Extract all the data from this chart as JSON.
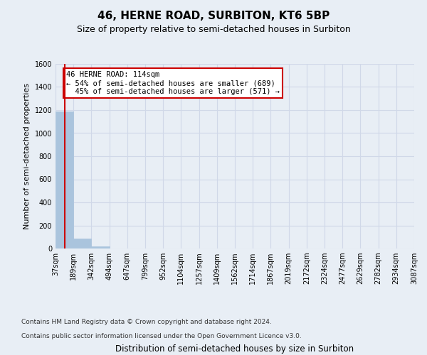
{
  "title": "46, HERNE ROAD, SURBITON, KT6 5BP",
  "subtitle": "Size of property relative to semi-detached houses in Surbiton",
  "xlabel": "Distribution of semi-detached houses by size in Surbiton",
  "ylabel": "Number of semi-detached properties",
  "bin_labels": [
    "37sqm",
    "189sqm",
    "342sqm",
    "494sqm",
    "647sqm",
    "799sqm",
    "952sqm",
    "1104sqm",
    "1257sqm",
    "1409sqm",
    "1562sqm",
    "1714sqm",
    "1867sqm",
    "2019sqm",
    "2172sqm",
    "2324sqm",
    "2477sqm",
    "2629sqm",
    "2782sqm",
    "2934sqm",
    "3087sqm"
  ],
  "bin_edges": [
    37,
    189,
    342,
    494,
    647,
    799,
    952,
    1104,
    1257,
    1409,
    1562,
    1714,
    1867,
    2019,
    2172,
    2324,
    2477,
    2629,
    2782,
    2934,
    3087
  ],
  "bar_heights": [
    1185,
    88,
    20,
    0,
    0,
    0,
    0,
    0,
    0,
    0,
    0,
    0,
    0,
    0,
    0,
    0,
    0,
    0,
    0,
    0
  ],
  "bar_color": "#aac4dd",
  "bar_edgecolor": "#aac4dd",
  "subject_size": 114,
  "subject_label": "46 HERNE ROAD: 114sqm",
  "pct_smaller": 54,
  "n_smaller": 689,
  "pct_larger": 45,
  "n_larger": 571,
  "vline_color": "#cc0000",
  "annotation_box_edgecolor": "#cc0000",
  "annotation_box_facecolor": "#ffffff",
  "grid_color": "#d0d8e8",
  "background_color": "#e8eef5",
  "ylim": [
    0,
    1600
  ],
  "yticks": [
    0,
    200,
    400,
    600,
    800,
    1000,
    1200,
    1400,
    1600
  ],
  "footer_line1": "Contains HM Land Registry data © Crown copyright and database right 2024.",
  "footer_line2": "Contains public sector information licensed under the Open Government Licence v3.0.",
  "title_fontsize": 11,
  "subtitle_fontsize": 9,
  "axis_label_fontsize": 8,
  "tick_fontsize": 7,
  "annotation_fontsize": 7.5,
  "footer_fontsize": 6.5
}
